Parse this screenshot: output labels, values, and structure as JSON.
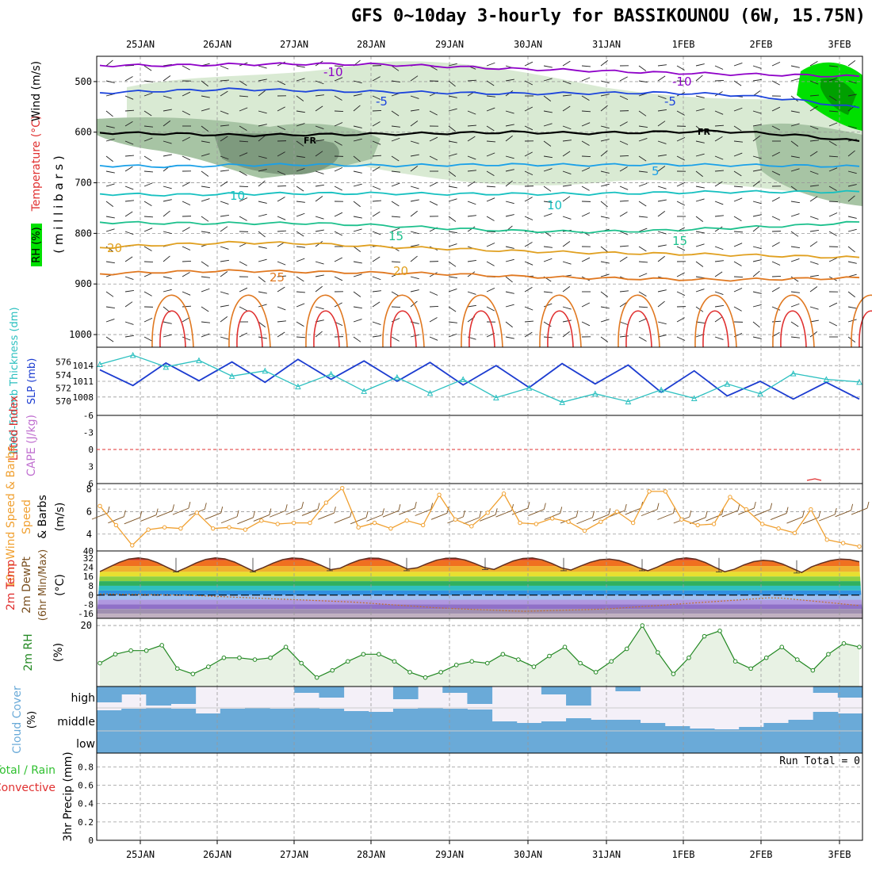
{
  "title": "GFS 0~10day 3-hourly for BASSIKOUNOU (6W, 15.75N)",
  "colors": {
    "rh_light": "#d9ead3",
    "rh_mid": "#a7c4a4",
    "rh_dark": "#7e9a7e",
    "rh_peak": "#00e000",
    "t_minus10": "#8e00c8",
    "t_minus5": "#1c44dc",
    "t_zero": "#000000",
    "t_5": "#1aa0e8",
    "t_10": "#16c0c0",
    "t_15": "#1cc08c",
    "t_20": "#e0a020",
    "t_25": "#e07820",
    "t_30": "#e03030",
    "slp": "#1c3cd0",
    "thickness": "#2cc0c0",
    "wind10m": "#f0a030",
    "barb": "#888888",
    "dewpt": "#7a5020",
    "rh2m": "#228822",
    "cloud": "#6aaad8",
    "precip_label": "#e03030",
    "precip_total": "#30c030",
    "cape": "#c070d0",
    "lifted": "#e03030"
  },
  "chart_data": {
    "type": "line",
    "date_ticks": [
      "25JAN",
      "26JAN",
      "27JAN",
      "28JAN",
      "29JAN",
      "30JAN",
      "31JAN",
      "1FEB",
      "2FEB",
      "3FEB"
    ],
    "panels": {
      "upper_air": {
        "label_rh": "RH (%)",
        "label_temp": "Temperature (°C)",
        "label_wind": "Wind (m/s)",
        "label_pressure": "( m i l l i b a r s )",
        "pressure_ticks": [
          "500",
          "600",
          "700",
          "800",
          "900",
          "1000"
        ],
        "ylim": [
          450,
          1025
        ],
        "isotherms": [
          {
            "label": "-10",
            "color_key": "t_minus10",
            "y": [
              468,
              468,
              466,
              465,
              466,
              470,
              475,
              478,
              482,
              485,
              487,
              490
            ]
          },
          {
            "label": "-5",
            "color_key": "t_minus5",
            "y": [
              522,
              518,
              515,
              518,
              520,
              522,
              524,
              523,
              522,
              525,
              535,
              552
            ]
          },
          {
            "label": "FR",
            "color_key": "t_zero",
            "y": [
              601,
              603,
              606,
              605,
              604,
              602,
              600,
              602,
              600,
              598,
              605,
              618
            ]
          },
          {
            "label": "5",
            "color_key": "t_5",
            "y": [
              666,
              668,
              665,
              664,
              666,
              665,
              664,
              665,
              664,
              665,
              666,
              668
            ]
          },
          {
            "label": "10",
            "color_key": "t_10",
            "y": [
              722,
              724,
              722,
              721,
              721,
              722,
              722,
              722,
              720,
              718,
              718,
              718
            ]
          },
          {
            "label": "15",
            "color_key": "t_15",
            "y": [
              778,
              780,
              780,
              780,
              784,
              790,
              795,
              797,
              795,
              790,
              785,
              778
            ]
          },
          {
            "label": "20",
            "color_key": "t_20",
            "y": [
              828,
              822,
              818,
              820,
              826,
              830,
              835,
              838,
              840,
              842,
              845,
              848
            ]
          },
          {
            "label": "25",
            "color_key": "t_25",
            "y": [
              880,
              876,
              874,
              876,
              878,
              880,
              885,
              888,
              890,
              892,
              890,
              888
            ]
          }
        ],
        "contour_labels": [
          "-10",
          "-10",
          "-5",
          "-5",
          "FR",
          "FR",
          "5",
          "10",
          "10",
          "15",
          "15",
          "20",
          "20",
          "25"
        ]
      },
      "slp_thickness": {
        "label_thickness": "1000-500mb Thickness (dm)",
        "label_slp": "SLP (mb)",
        "thickness_ticks": [
          "576",
          "574",
          "572",
          "570"
        ],
        "slp_ticks": [
          "1014",
          "1011",
          "1008"
        ],
        "thickness_range": [
          569,
          577
        ],
        "slp": [
          1013.2,
          1010.2,
          1014.5,
          1011.1,
          1014.7,
          1010.8,
          1015.2,
          1011.4,
          1014.9,
          1011.0,
          1014.6,
          1010.3,
          1014.0,
          1009.8,
          1014.4,
          1010.5,
          1014.1,
          1008.9,
          1013.0,
          1008.2,
          1011.0,
          1007.6,
          1010.8,
          1007.6
        ],
        "thickness": [
          575.6,
          577.0,
          575.2,
          576.2,
          573.8,
          574.6,
          572.2,
          574.1,
          571.5,
          573.6,
          571.2,
          573.3,
          570.5,
          572.0,
          569.8,
          571.1,
          569.9,
          571.7,
          570.4,
          572.6,
          571.1,
          574.2,
          573.3,
          572.9
        ]
      },
      "cape_li": {
        "label_li": "Lifted Index",
        "label_cape": "CAPE (J/kg)",
        "li_ticks": [
          "-6",
          "-3",
          "0",
          "3",
          "6"
        ]
      },
      "wind10m": {
        "label": "10m Wind Speed & Barbs",
        "unit": "(m/s)",
        "ticks": [
          "8",
          "6",
          "4"
        ],
        "ylim": [
          2.5,
          8.5
        ],
        "speed": [
          6.5,
          4.8,
          3.0,
          4.4,
          4.6,
          4.5,
          5.9,
          4.5,
          4.6,
          4.4,
          5.2,
          4.9,
          5.0,
          5.0,
          6.8,
          8.1,
          4.6,
          5.0,
          4.5,
          5.2,
          4.8,
          7.5,
          5.3,
          4.7,
          5.9,
          7.6,
          5.0,
          4.9,
          5.4,
          5.1,
          4.3,
          5.1,
          6.0,
          5.0,
          7.8,
          7.8,
          5.3,
          4.8,
          4.9,
          7.3,
          6.2,
          4.9,
          4.5,
          4.1,
          6.2,
          3.5,
          3.2,
          2.9
        ]
      },
      "temp2m": {
        "label_temp": "2m Temp",
        "label_dewpt": "2m DewPt",
        "label_minmax": "(6hr Min/Max)",
        "unit": "(°C)",
        "ticks": [
          "32",
          "24",
          "16",
          "8",
          "0",
          "-8",
          "-16"
        ],
        "ylim": [
          -20,
          38
        ],
        "temp_max": [
          32,
          32,
          32,
          32,
          32,
          32,
          31,
          32,
          30,
          31
        ],
        "temp_min": [
          20,
          20,
          21,
          21,
          22,
          21,
          21,
          20,
          19,
          22
        ],
        "dewpoint": [
          1,
          0,
          -3,
          -6,
          -11,
          -14,
          -12,
          -7,
          -2,
          -9
        ]
      },
      "rh2m": {
        "label": "2m RH",
        "unit": "(%)",
        "ticks": [
          "20"
        ],
        "ylim": [
          3,
          22
        ],
        "values": [
          9.5,
          12,
          13,
          13,
          14.5,
          8,
          6.5,
          8.5,
          11,
          11,
          10.5,
          11,
          14,
          9.5,
          5.5,
          7.5,
          10,
          12,
          12,
          10,
          7,
          5.5,
          7,
          9,
          10,
          9.5,
          12,
          10.5,
          8.5,
          11.5,
          14,
          9.5,
          7,
          10,
          13.5,
          20,
          12.5,
          6.5,
          11,
          17,
          18.5,
          10,
          8,
          11,
          14,
          10.5,
          7.5,
          12,
          15,
          14
        ]
      },
      "cloud": {
        "label": "Cloud Cover",
        "unit": "(%)",
        "levels": [
          "high",
          "middle",
          "low"
        ]
      },
      "precip": {
        "label_total": "Total / Rain",
        "label_conv": "Convective",
        "label_axis": "3hr Precip (mm)",
        "run_total": "Run Total = 0",
        "ticks": [
          "0.8",
          "0.6",
          "0.4",
          "0.2",
          "0"
        ],
        "ylim": [
          0,
          0.95
        ]
      }
    }
  }
}
